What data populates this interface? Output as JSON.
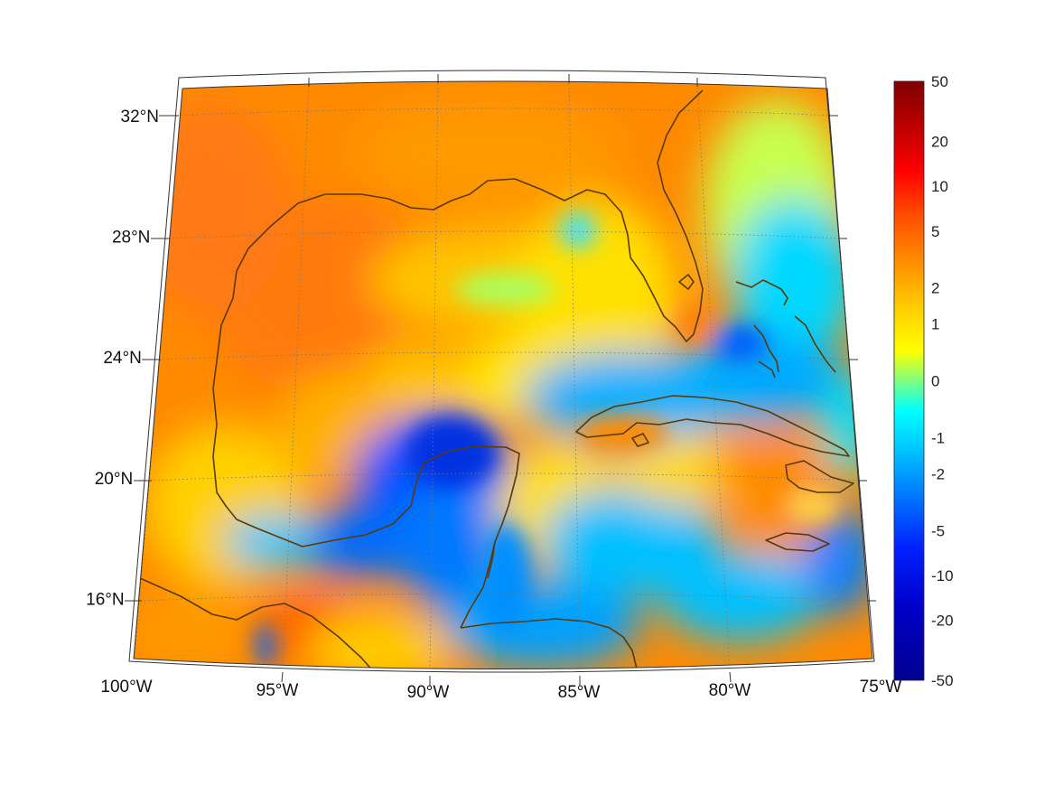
{
  "map": {
    "region": "Gulf of Mexico and Caribbean",
    "projection": "lambert-conformal (conic)",
    "extent": {
      "lon_min": -100,
      "lon_max": -75,
      "lat_min": 14.5,
      "lat_max": 32.5
    },
    "coastline_color": "#5a3a0a",
    "gridline_color": "#777777"
  },
  "lat_ticks": [
    {
      "label": "32°N",
      "lat": 32
    },
    {
      "label": "28°N",
      "lat": 28
    },
    {
      "label": "24°N",
      "lat": 24
    },
    {
      "label": "20°N",
      "lat": 20
    },
    {
      "label": "16°N",
      "lat": 16
    }
  ],
  "lon_ticks": [
    {
      "label": "100°W",
      "lon": -100
    },
    {
      "label": "95°W",
      "lon": -95
    },
    {
      "label": "90°W",
      "lon": -90
    },
    {
      "label": "85°W",
      "lon": -85
    },
    {
      "label": "80°W",
      "lon": -80
    },
    {
      "label": "75°W",
      "lon": -75
    }
  ],
  "colorbar": {
    "scale": "symmetric nonlinear",
    "labels": [
      "50",
      "20",
      "10",
      "5",
      "2",
      "1",
      "0",
      "-1",
      "-2",
      "-5",
      "-10",
      "-20",
      "-50"
    ],
    "colors": [
      "#7f0000",
      "#ff0000",
      "#ff6a00",
      "#ffb800",
      "#ffff00",
      "#7fff7f",
      "#00e5ff",
      "#008cff",
      "#0000ff",
      "#00008f"
    ]
  }
}
